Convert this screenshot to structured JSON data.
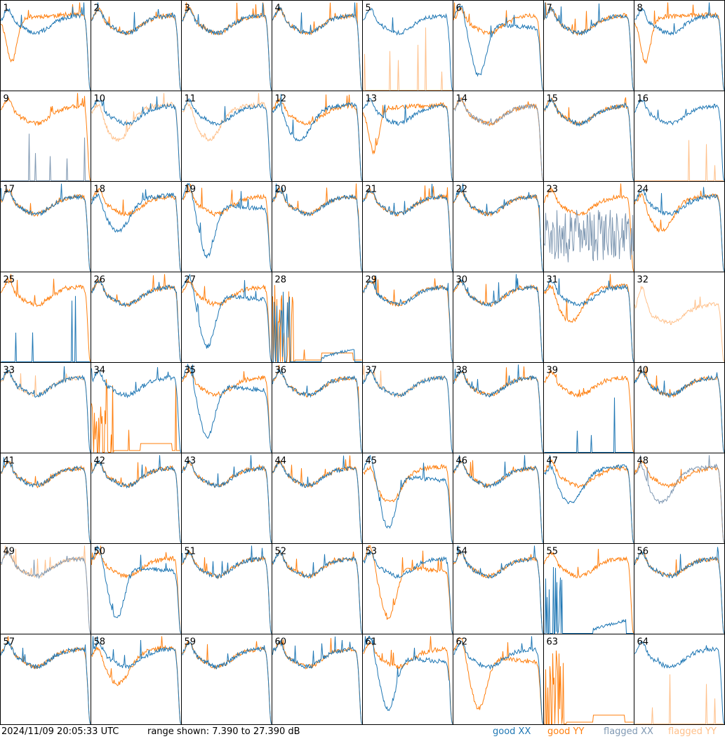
{
  "footer": {
    "timestamp": "2024/11/09 20:05:33 UTC",
    "range_text": "range shown: 7.390 to 27.390 dB",
    "legend_good_xx": "good XX",
    "legend_good_yy": "good YY",
    "legend_flagged_xx": "flagged XX",
    "legend_flagged_yy": "flagged YY"
  },
  "colors": {
    "good_xx": "#1f77b4",
    "good_yy": "#ff7f0e",
    "flagged_xx": "#8099b3",
    "flagged_yy": "#ffc08a"
  },
  "chart_data": {
    "type": "line",
    "grid_rows": 8,
    "grid_cols": 8,
    "ylim": [
      7.39,
      27.39
    ],
    "series_names": [
      "good XX",
      "good YY",
      "flagged XX",
      "flagged YY"
    ],
    "panels": [
      {
        "label": "1",
        "xx": "normal",
        "yy": "lowfront",
        "xx_flag": false,
        "yy_flag": false
      },
      {
        "label": "2",
        "xx": "normal",
        "yy": "normal",
        "xx_flag": false,
        "yy_flag": false
      },
      {
        "label": "3",
        "xx": "normal",
        "yy": "normal",
        "xx_flag": false,
        "yy_flag": false
      },
      {
        "label": "4",
        "xx": "normal",
        "yy": "normal",
        "xx_flag": false,
        "yy_flag": false
      },
      {
        "label": "5",
        "xx": "normal",
        "yy": "dead_spikes",
        "xx_flag": false,
        "yy_flag": true
      },
      {
        "label": "6",
        "xx": "dip",
        "yy": "normal",
        "xx_flag": false,
        "yy_flag": false
      },
      {
        "label": "7",
        "xx": "normal",
        "yy": "normal",
        "xx_flag": false,
        "yy_flag": false
      },
      {
        "label": "8",
        "xx": "normal",
        "yy": "lowfront",
        "xx_flag": false,
        "yy_flag": false
      },
      {
        "label": "9",
        "xx": "dead_spikes",
        "yy": "normal",
        "xx_flag": true,
        "yy_flag": false
      },
      {
        "label": "10",
        "xx": "normal",
        "yy": "low",
        "xx_flag": false,
        "yy_flag": true
      },
      {
        "label": "11",
        "xx": "normal",
        "yy": "low",
        "xx_flag": false,
        "yy_flag": true
      },
      {
        "label": "12",
        "xx": "low",
        "yy": "normal",
        "xx_flag": false,
        "yy_flag": false
      },
      {
        "label": "13",
        "xx": "normal",
        "yy": "lowfront",
        "xx_flag": false,
        "yy_flag": false
      },
      {
        "label": "14",
        "xx": "normal",
        "yy": "normal",
        "xx_flag": true,
        "yy_flag": false
      },
      {
        "label": "15",
        "xx": "normal",
        "yy": "normal",
        "xx_flag": false,
        "yy_flag": false
      },
      {
        "label": "16",
        "xx": "normal",
        "yy": "dead_spikes",
        "xx_flag": false,
        "yy_flag": true
      },
      {
        "label": "17",
        "xx": "normal",
        "yy": "normal",
        "xx_flag": false,
        "yy_flag": false
      },
      {
        "label": "18",
        "xx": "low",
        "yy": "normal",
        "xx_flag": false,
        "yy_flag": false
      },
      {
        "label": "19",
        "xx": "dip",
        "yy": "normal",
        "xx_flag": false,
        "yy_flag": false
      },
      {
        "label": "20",
        "xx": "normal",
        "yy": "normal",
        "xx_flag": false,
        "yy_flag": false
      },
      {
        "label": "21",
        "xx": "normal",
        "yy": "normal",
        "xx_flag": false,
        "yy_flag": false
      },
      {
        "label": "22",
        "xx": "normal",
        "yy": "normal",
        "xx_flag": false,
        "yy_flag": false
      },
      {
        "label": "23",
        "xx": "noisy",
        "yy": "normal",
        "xx_flag": true,
        "yy_flag": false
      },
      {
        "label": "24",
        "xx": "normal",
        "yy": "low",
        "xx_flag": false,
        "yy_flag": false
      },
      {
        "label": "25",
        "xx": "dead_spikes",
        "yy": "normal",
        "xx_flag": false,
        "yy_flag": false
      },
      {
        "label": "26",
        "xx": "normal",
        "yy": "normal",
        "xx_flag": false,
        "yy_flag": false
      },
      {
        "label": "27",
        "xx": "dip",
        "yy": "normal",
        "xx_flag": false,
        "yy_flag": false
      },
      {
        "label": "28",
        "xx": "low_tail",
        "yy": "spiky_front",
        "xx_flag": false,
        "yy_flag": false
      },
      {
        "label": "29",
        "xx": "normal",
        "yy": "normal",
        "xx_flag": false,
        "yy_flag": false
      },
      {
        "label": "30",
        "xx": "normal",
        "yy": "normal",
        "xx_flag": false,
        "yy_flag": false
      },
      {
        "label": "31",
        "xx": "normal",
        "yy": "low",
        "xx_flag": false,
        "yy_flag": false
      },
      {
        "label": "32",
        "xx": "none",
        "yy": "mid",
        "xx_flag": false,
        "yy_flag": true
      },
      {
        "label": "33",
        "xx": "normal",
        "yy": "normal",
        "xx_flag": false,
        "yy_flag": true
      },
      {
        "label": "34",
        "xx": "normal",
        "yy": "spiky_front",
        "xx_flag": false,
        "yy_flag": false
      },
      {
        "label": "35",
        "xx": "dip",
        "yy": "normal",
        "xx_flag": false,
        "yy_flag": false
      },
      {
        "label": "36",
        "xx": "normal",
        "yy": "normal",
        "xx_flag": false,
        "yy_flag": false
      },
      {
        "label": "37",
        "xx": "normal",
        "yy": "normal",
        "xx_flag": false,
        "yy_flag": true
      },
      {
        "label": "38",
        "xx": "normal",
        "yy": "normal",
        "xx_flag": false,
        "yy_flag": false
      },
      {
        "label": "39",
        "xx": "dead_spikes",
        "yy": "normal",
        "xx_flag": false,
        "yy_flag": false
      },
      {
        "label": "40",
        "xx": "normal",
        "yy": "normal",
        "xx_flag": false,
        "yy_flag": false
      },
      {
        "label": "41",
        "xx": "normal",
        "yy": "normal",
        "xx_flag": false,
        "yy_flag": false
      },
      {
        "label": "42",
        "xx": "normal",
        "yy": "normal",
        "xx_flag": false,
        "yy_flag": false
      },
      {
        "label": "43",
        "xx": "normal",
        "yy": "normal",
        "xx_flag": false,
        "yy_flag": false
      },
      {
        "label": "44",
        "xx": "normal",
        "yy": "normal",
        "xx_flag": false,
        "yy_flag": false
      },
      {
        "label": "45",
        "xx": "dip",
        "yy": "low",
        "xx_flag": false,
        "yy_flag": false
      },
      {
        "label": "46",
        "xx": "normal",
        "yy": "normal",
        "xx_flag": false,
        "yy_flag": false
      },
      {
        "label": "47",
        "xx": "low",
        "yy": "normal",
        "xx_flag": false,
        "yy_flag": false
      },
      {
        "label": "48",
        "xx": "low",
        "yy": "normal",
        "xx_flag": true,
        "yy_flag": false
      },
      {
        "label": "49",
        "xx": "normal",
        "yy": "normal",
        "xx_flag": true,
        "yy_flag": true
      },
      {
        "label": "50",
        "xx": "dip",
        "yy": "normal",
        "xx_flag": false,
        "yy_flag": false
      },
      {
        "label": "51",
        "xx": "normal",
        "yy": "normal",
        "xx_flag": false,
        "yy_flag": false
      },
      {
        "label": "52",
        "xx": "normal",
        "yy": "normal",
        "xx_flag": false,
        "yy_flag": false
      },
      {
        "label": "53",
        "xx": "normal",
        "yy": "dip",
        "xx_flag": false,
        "yy_flag": false
      },
      {
        "label": "54",
        "xx": "normal",
        "yy": "normal",
        "xx_flag": false,
        "yy_flag": false
      },
      {
        "label": "55",
        "xx": "low_tail",
        "yy": "normal",
        "xx_flag": false,
        "yy_flag": false
      },
      {
        "label": "56",
        "xx": "normal",
        "yy": "normal",
        "xx_flag": false,
        "yy_flag": false
      },
      {
        "label": "57",
        "xx": "normal",
        "yy": "normal",
        "xx_flag": false,
        "yy_flag": false
      },
      {
        "label": "58",
        "xx": "normal",
        "yy": "low",
        "xx_flag": false,
        "yy_flag": false
      },
      {
        "label": "59",
        "xx": "normal",
        "yy": "normal",
        "xx_flag": false,
        "yy_flag": false
      },
      {
        "label": "60",
        "xx": "normal",
        "yy": "normal",
        "xx_flag": false,
        "yy_flag": false
      },
      {
        "label": "61",
        "xx": "dip",
        "yy": "normal",
        "xx_flag": false,
        "yy_flag": false
      },
      {
        "label": "62",
        "xx": "normal",
        "yy": "dip",
        "xx_flag": false,
        "yy_flag": false
      },
      {
        "label": "63",
        "xx": "none",
        "yy": "spiky_front",
        "xx_flag": false,
        "yy_flag": false
      },
      {
        "label": "64",
        "xx": "normal",
        "yy": "dead_spikes",
        "xx_flag": false,
        "yy_flag": true
      }
    ]
  }
}
